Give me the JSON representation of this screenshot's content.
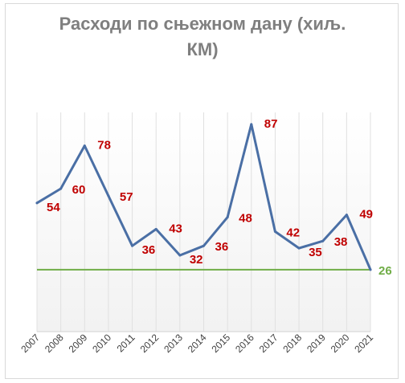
{
  "chart_data": {
    "type": "line",
    "title_line1": "Расходи по сњежном дану (хиљ.",
    "title_line2": "КМ)",
    "categories": [
      "2007",
      "2008",
      "2009",
      "2010",
      "2011",
      "2012",
      "2013",
      "2014",
      "2015",
      "2016",
      "2017",
      "2018",
      "2019",
      "2020",
      "2021"
    ],
    "series": [
      {
        "values": [
          54,
          60,
          78,
          57,
          36,
          43,
          32,
          36,
          48,
          87,
          42,
          35,
          38,
          49,
          26
        ],
        "color": "#4a6fa5"
      }
    ],
    "data_labels": [
      "54",
      "60",
      "78",
      "57",
      "36",
      "43",
      "32",
      "36",
      "48",
      "87",
      "42",
      "35",
      "38",
      "49"
    ],
    "reference_line": {
      "value": 26,
      "label": "26",
      "color": "#70ad47"
    },
    "ylim": [
      0,
      92
    ],
    "grid": "vertical",
    "label_color": "#c00000"
  }
}
